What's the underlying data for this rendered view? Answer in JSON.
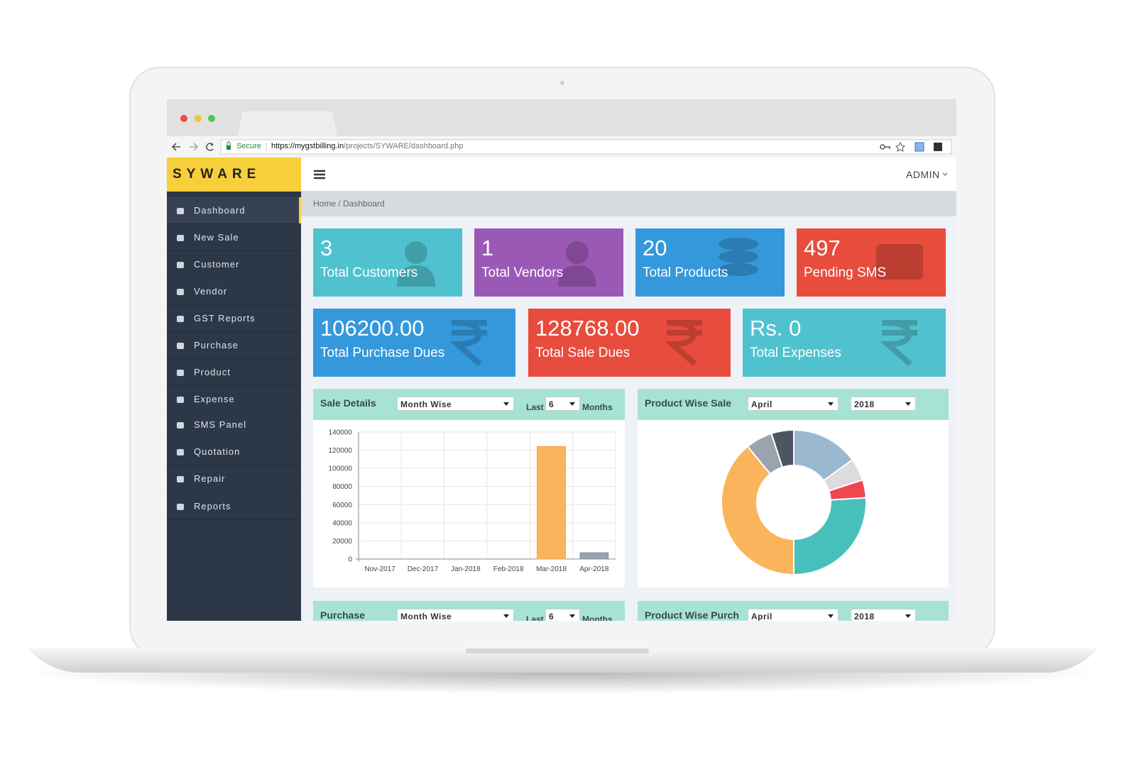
{
  "browser": {
    "security": "Secure",
    "url_host": "https://mygstbilling.in",
    "url_path": "/projects/SYWARE/dashboard.php"
  },
  "sidebar": {
    "brand": "SYWARE",
    "items": [
      "Dashboard",
      "New Sale",
      "Customer",
      "Vendor",
      "GST Reports",
      "Purchase",
      "Product",
      "Expense",
      "SMS Panel",
      "Quotation",
      "Repair",
      "Reports"
    ]
  },
  "header": {
    "user": "ADMIN"
  },
  "breadcrumb": "Home / Dashboard",
  "cards": [
    {
      "value": "3",
      "label": "Total Customers",
      "color": "#50c1cf"
    },
    {
      "value": "1",
      "label": "Total Vendors",
      "color": "#9b59b6"
    },
    {
      "value": "20",
      "label": "Total Products",
      "color": "#3498db"
    },
    {
      "value": "497",
      "label": "Pending SMS",
      "color": "#e74c3c"
    },
    {
      "value": "106200.00",
      "label": "Total Purchase Dues",
      "color": "#3498db"
    },
    {
      "value": "128768.00",
      "label": "Total Sale Dues",
      "color": "#e74c3c"
    },
    {
      "value": "Rs. 0",
      "label": "Total Expenses",
      "color": "#50c1cf"
    }
  ],
  "panels": [
    {
      "title": "Sale Details",
      "select": "Month Wise",
      "last_label": "Last",
      "last_value": "6",
      "unit": "Months",
      "chart": {
        "type": "bar",
        "categories": [
          "Nov-2017",
          "Dec-2017",
          "Jan-2018",
          "Feb-2018",
          "Mar-2018",
          "Apr-2018"
        ],
        "values": [
          0,
          0,
          0,
          0,
          124000,
          7000
        ],
        "colors": [
          "#fbb45c",
          "#fbb45c",
          "#fbb45c",
          "#fbb45c",
          "#fbb45c",
          "#9aa2b1"
        ],
        "ylim": [
          0,
          140000
        ],
        "yticks": [
          0,
          20000,
          40000,
          60000,
          80000,
          100000,
          120000,
          140000
        ],
        "grid": true
      }
    },
    {
      "title": "Product Wise Sale",
      "month": "April",
      "year": "2018",
      "chart": {
        "type": "doughnut",
        "values": [
          15,
          5,
          4,
          26,
          39,
          6,
          5
        ],
        "colors": [
          "#9ab9cf",
          "#dcdcdc",
          "#f0474f",
          "#47c0bb",
          "#fbb45c",
          "#9aa4ae",
          "#4d5562"
        ]
      }
    },
    {
      "title": "Purchase",
      "select": "Month Wise",
      "last_label": "Last",
      "last_value": "6",
      "unit": "Months"
    },
    {
      "title": "Product Wise Purch",
      "month": "April",
      "year": "2018"
    }
  ]
}
